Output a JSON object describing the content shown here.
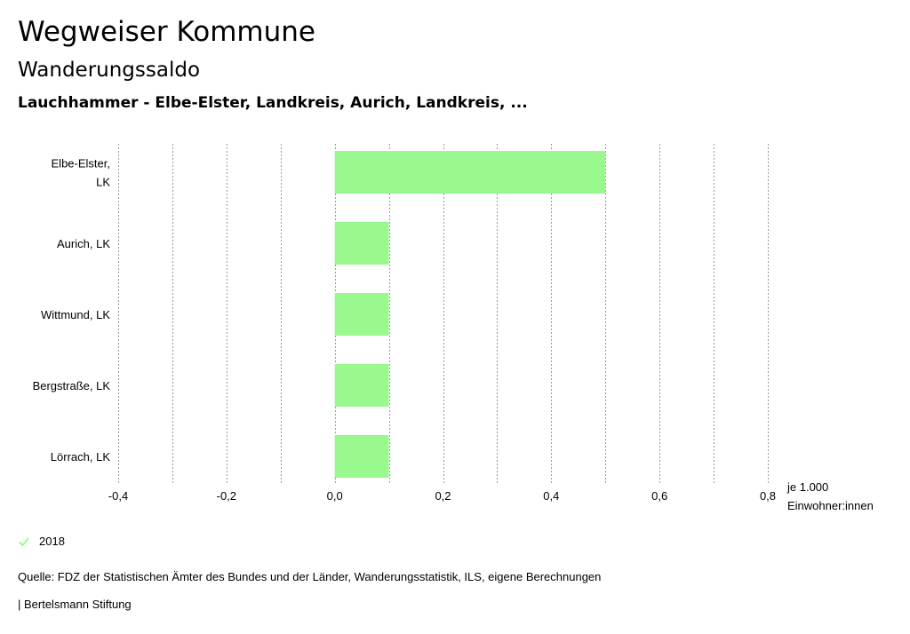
{
  "header": {
    "title": "Wegweiser Kommune",
    "subtitle": "Wanderungssaldo",
    "regions": "Lauchhammer - Elbe-Elster, Landkreis, Aurich, Landkreis, ..."
  },
  "chart_data": {
    "type": "bar",
    "orientation": "horizontal",
    "categories": [
      [
        "Elbe-Elster,",
        "LK"
      ],
      [
        "Aurich, LK"
      ],
      [
        "Wittmund, LK"
      ],
      [
        "Bergstraße, LK"
      ],
      [
        "Lörrach, LK"
      ]
    ],
    "series": [
      {
        "name": "2018",
        "values": [
          0.5,
          0.1,
          0.1,
          0.1,
          0.1
        ],
        "color": "#99f98f"
      }
    ],
    "xlim": [
      -0.4,
      0.8
    ],
    "x_ticks": [
      -0.4,
      -0.2,
      0.0,
      0.2,
      0.4,
      0.6,
      0.8
    ],
    "x_tick_labels": [
      "-0,4",
      "-0,2",
      "0,0",
      "0,2",
      "0,4",
      "0,6",
      "0,8"
    ],
    "x_minor_step": 0.1,
    "unit_label": [
      "je 1.000",
      "Einwohner:innen"
    ],
    "grid": true,
    "grid_style": "dotted vertical",
    "legend_position": "bottom-left"
  },
  "legend": {
    "label": "2018",
    "icon": "check-icon",
    "color": "#99f98f"
  },
  "footer": {
    "source": "Quelle: FDZ der Statistischen Ämter des Bundes und der Länder, Wanderungsstatistik, ILS, eigene Berechnungen",
    "publisher": "| Bertelsmann Stiftung"
  }
}
